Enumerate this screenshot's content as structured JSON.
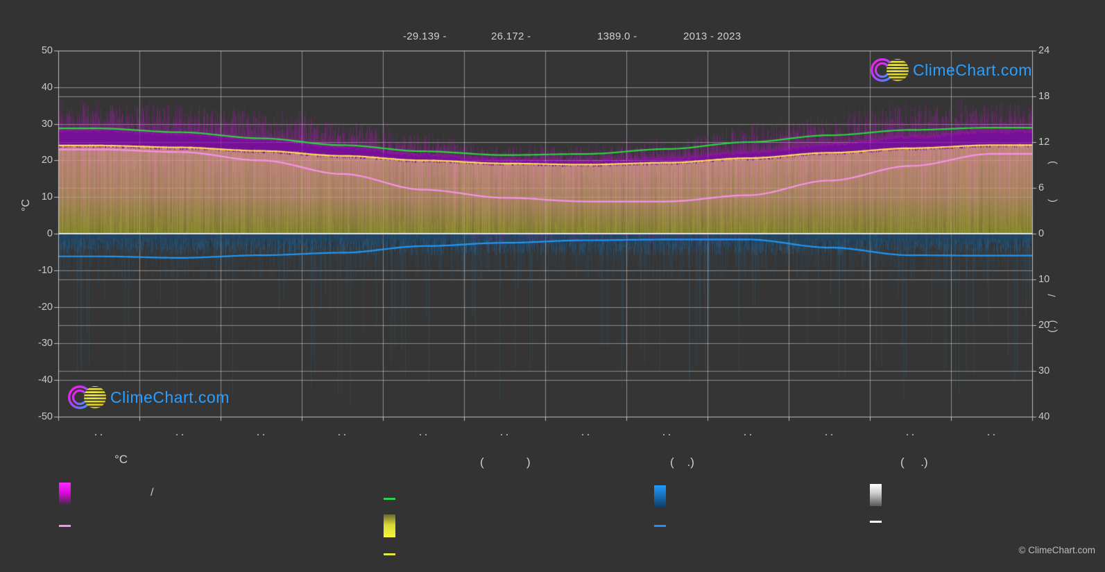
{
  "header": {
    "items": [
      {
        "text": "-29.139 -"
      },
      {
        "text": "26.172 -"
      },
      {
        "text": "1389.0 -"
      },
      {
        "text": "2013 - 2023"
      }
    ]
  },
  "axes": {
    "left": {
      "title": "°C",
      "tick_labels": [
        "50",
        "40",
        "30",
        "20",
        "10",
        "0",
        "-10",
        "-20",
        "-30",
        "-40",
        "-50"
      ],
      "range": [
        -50,
        50
      ]
    },
    "right_upper": {
      "tick_labels": [
        "24",
        "18",
        "12",
        "6",
        "0"
      ],
      "range": [
        0,
        24
      ],
      "rotated_label_fragments": "(            )"
    },
    "right_lower": {
      "tick_labels": [
        "10",
        "20",
        "30",
        "40"
      ],
      "range": [
        0,
        40
      ],
      "rotated_label_fragments": "(. )        /"
    },
    "bottom": {
      "months": 12,
      "month_label_glyph": ". .",
      "note": "month tick labels appear as two small dots (original glyphs not rendered)"
    }
  },
  "watermarks": {
    "logo_text": "ClimeChart.com",
    "copyright": "© ClimeChart.com"
  },
  "legend": {
    "col1": {
      "title": "°C",
      "row1_label": "/",
      "swatch1": "magenta-gradient-swatch",
      "swatch2": "pink-line-swatch"
    },
    "col2": {
      "title": "(             )",
      "swatch1": "green-line-swatch",
      "swatch2": "yellow-gradient-swatch",
      "swatch3": "yellow-line-swatch"
    },
    "col3": {
      "title": "(    .)",
      "swatch1": "blue-gradient-swatch",
      "swatch2": "blue-line-swatch"
    },
    "col4": {
      "title": "(     .)",
      "swatch1": "white-gradient-swatch",
      "swatch2": "white-line-swatch"
    }
  },
  "colors": {
    "background": "#333333",
    "plot_background": "#353535",
    "grid": "rgba(255,255,255,0.33)",
    "axis_border": "#c8c8c8",
    "zero_line": "#ececec",
    "green_line": "#2bd341",
    "yellow_line": "#ffdf50",
    "pink_line": "#f793e8",
    "blue_line": "#2196f3",
    "olive_fill": "#969630",
    "pink_haze": "#e082ac",
    "magenta_band": "#7c0e9e",
    "magenta_spikes": "#ba18c4",
    "blue_fill": "#24608c",
    "logo_text_color": "#2b9fff"
  },
  "chart_data": {
    "type": "area",
    "description": "Composite climate chart (ClimeChart): temperatures in °C on left axis, day-length / sunshine hours on upper right axis (0-24), lower series on lower right axis (0-40). Daily noisy bands with smooth monthly mean lines, period 2013-2023.",
    "x_months": 12,
    "month_labels_shown_as": ". .",
    "ylim_left": [
      -50,
      50
    ],
    "ylim_right_upper": [
      0,
      24
    ],
    "ylim_right_lower": [
      0,
      40
    ],
    "grid": "on",
    "series": [
      {
        "name": "day-length-line",
        "axis": "hours",
        "color": "#2bd341",
        "values": [
          13.8,
          13.3,
          12.5,
          11.6,
          10.8,
          10.3,
          10.45,
          11.1,
          12.0,
          12.9,
          13.6,
          13.9
        ]
      },
      {
        "name": "sunshine-hours-line",
        "axis": "hours",
        "color": "#ffdf50",
        "values": [
          11.55,
          11.3,
          10.85,
          10.2,
          9.6,
          9.2,
          9.05,
          9.3,
          9.9,
          10.6,
          11.2,
          11.6
        ]
      },
      {
        "name": "min-temp-line",
        "axis": "celsius",
        "color": "#f793e8",
        "values": [
          23.0,
          22.3,
          20.0,
          16.3,
          12.0,
          9.8,
          8.8,
          8.8,
          10.5,
          14.5,
          18.5,
          21.8
        ]
      },
      {
        "name": "max-temp-band-top",
        "axis": "celsius",
        "color": "#7c0e9e",
        "values": [
          28.3,
          27.4,
          25.8,
          23.8,
          21.6,
          20.2,
          19.8,
          20.6,
          22.3,
          24.5,
          26.5,
          28.0
        ]
      },
      {
        "name": "max-temp-spike-tops",
        "axis": "celsius",
        "color": "#ba18c4",
        "values": [
          36,
          35,
          34,
          31,
          27,
          24,
          24,
          26,
          30,
          33,
          35,
          36
        ]
      },
      {
        "name": "below-zero-line",
        "axis": "celsius",
        "color": "#2196f3",
        "values": [
          -6.2,
          -6.6,
          -5.9,
          -5.2,
          -3.4,
          -2.5,
          -1.8,
          -1.6,
          -1.6,
          -3.8,
          -5.9,
          -6.0
        ]
      }
    ]
  }
}
